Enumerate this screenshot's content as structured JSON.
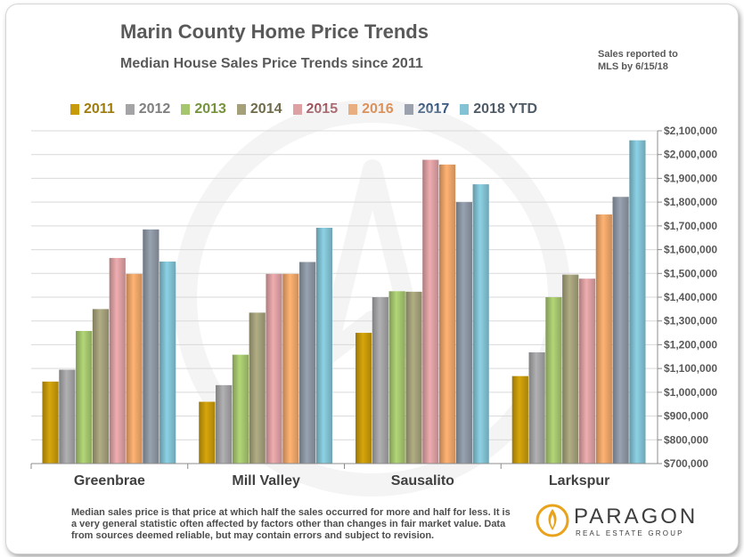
{
  "header": {
    "title": "Marin County Home Price Trends",
    "subtitle": "Median House Sales Price Trends since 2011",
    "note": "Sales reported to MLS by 6/15/18"
  },
  "footer": {
    "text": "Median sales price is that price at which half the sales occurred for more and half for less. It is a very general statistic often affected by factors other than changes in fair market value. Data from sources deemed reliable, but may contain errors and subject to revision."
  },
  "logo": {
    "name": "PARAGON",
    "tagline": "REAL ESTATE GROUP",
    "icon": "paragon-flame-logo-icon"
  },
  "colors": {
    "2011": "#c79a0a",
    "2012": "#a4a4a6",
    "2013": "#a6c66e",
    "2014": "#a4a07a",
    "2015": "#dda0a3",
    "2016": "#f0a66a",
    "2017": "#8d97a4",
    "2018 YTD": "#82c2d4"
  },
  "legend_text_colors": {
    "2011": "#a07c08",
    "2012": "#7f7f7f",
    "2013": "#76933c",
    "2014": "#6f6b4b",
    "2015": "#a0525c",
    "2016": "#e0823a",
    "2017": "#3a5a80",
    "2018 YTD": "#4f5b66"
  },
  "chart_data": {
    "type": "bar",
    "title": "Marin County Home Price Trends",
    "subtitle": "Median House Sales Price Trends since 2011",
    "categories": [
      "Greenbrae",
      "Mill Valley",
      "Sausalito",
      "Larkspur"
    ],
    "series": [
      {
        "name": "2011",
        "values": [
          1045000,
          960000,
          1250000,
          1068000
        ]
      },
      {
        "name": "2012",
        "values": [
          1095000,
          1030000,
          1400000,
          1168000
        ]
      },
      {
        "name": "2013",
        "values": [
          1258000,
          1158000,
          1425000,
          1400000
        ]
      },
      {
        "name": "2014",
        "values": [
          1350000,
          1335000,
          1423000,
          1495000
        ]
      },
      {
        "name": "2015",
        "values": [
          1565000,
          1498000,
          1978000,
          1478000
        ]
      },
      {
        "name": "2016",
        "values": [
          1498000,
          1498000,
          1958000,
          1748000
        ]
      },
      {
        "name": "2017",
        "values": [
          1685000,
          1548000,
          1800000,
          1822000
        ]
      },
      {
        "name": "2018 YTD",
        "values": [
          1550000,
          1692000,
          1875000,
          2060000
        ]
      }
    ],
    "ylim": [
      700000,
      2100000
    ],
    "ytick_step": 100000,
    "ytick_labels": [
      "$700,000",
      "$800,000",
      "$900,000",
      "$1,000,000",
      "$1,100,000",
      "$1,200,000",
      "$1,300,000",
      "$1,400,000",
      "$1,500,000",
      "$1,600,000",
      "$1,700,000",
      "$1,800,000",
      "$1,900,000",
      "$2,000,000",
      "$2,100,000"
    ],
    "yaxis_position": "right",
    "grid": true,
    "legend_position": "top"
  }
}
